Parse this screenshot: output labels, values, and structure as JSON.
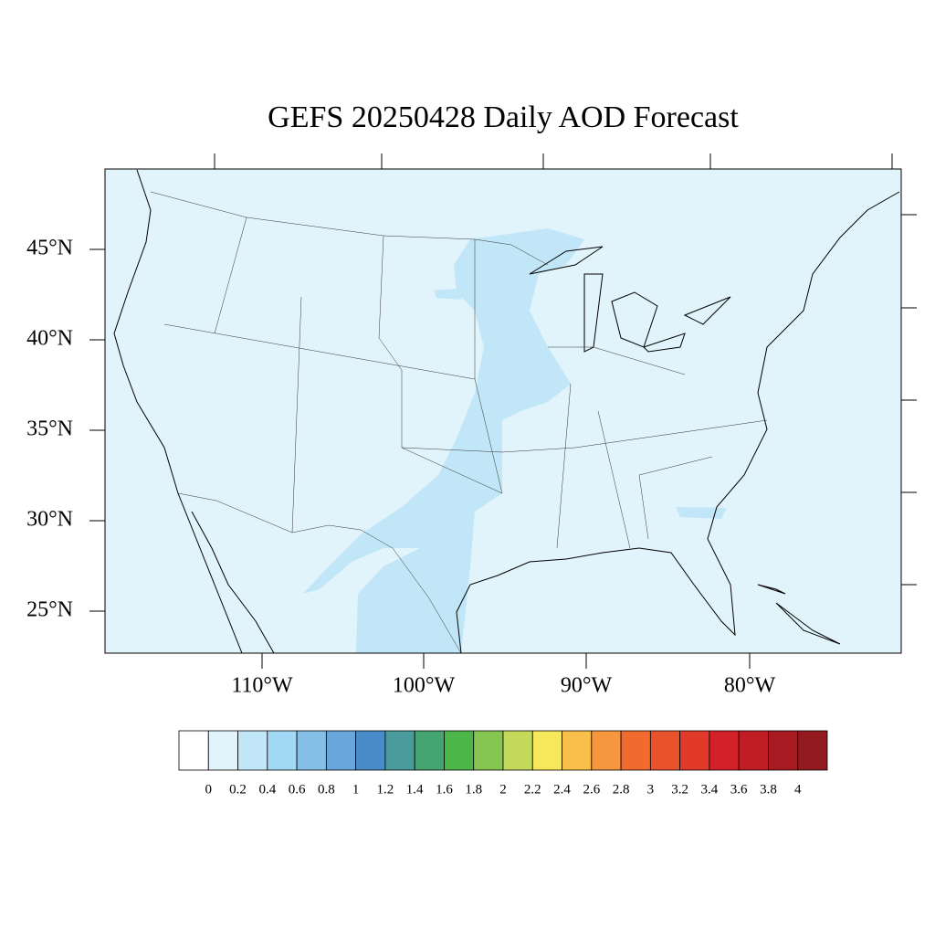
{
  "title": "GEFS 20250428 Daily AOD Forecast",
  "lat_labels": [
    "45°N",
    "40°N",
    "35°N",
    "30°N",
    "25°N"
  ],
  "lon_labels": [
    "110°W",
    "100°W",
    "90°W",
    "80°W"
  ],
  "colorbar": {
    "colors": [
      "#ffffff",
      "#e1f3fb",
      "#c1e6f7",
      "#a1d9f4",
      "#84bfe5",
      "#69a7da",
      "#4a8cc9",
      "#4a9b9b",
      "#45a572",
      "#4cb648",
      "#86c550",
      "#c4d95a",
      "#f7e75b",
      "#f8c04a",
      "#f6963f",
      "#f06b2d",
      "#e9532b",
      "#e13a2a",
      "#d42129",
      "#c01d25",
      "#a81b22",
      "#931a1e"
    ],
    "labels": [
      0,
      0.2,
      0.4,
      0.6,
      0.8,
      1,
      1.2,
      1.4,
      1.6,
      1.8,
      2,
      2.2,
      2.4,
      2.6,
      2.8,
      3,
      3.2,
      3.4,
      3.6,
      3.8,
      4
    ]
  }
}
